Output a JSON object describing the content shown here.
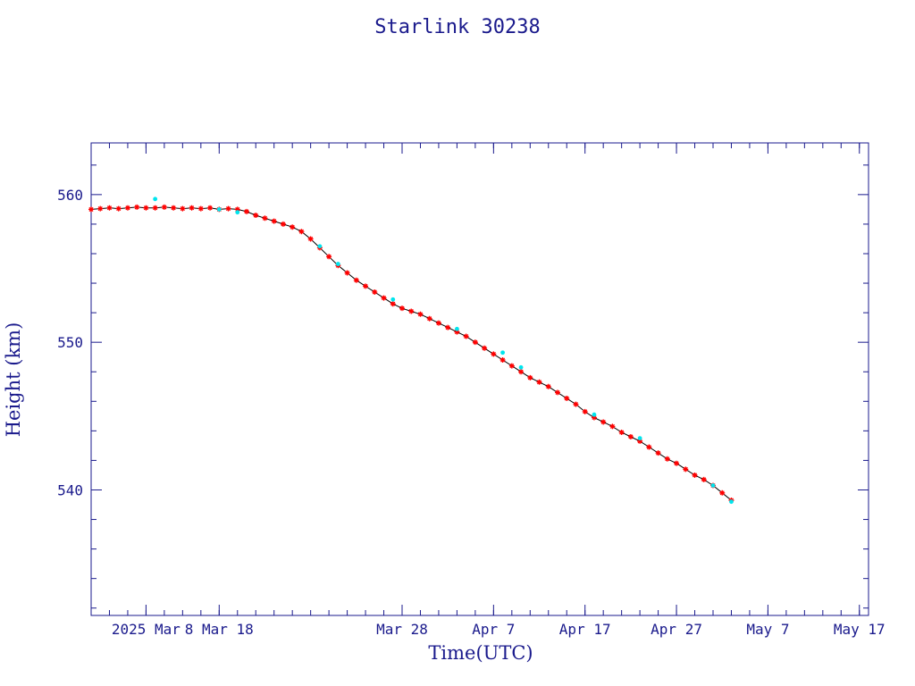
{
  "chart_data": {
    "type": "scatter",
    "title": "Starlink 30238",
    "xlabel": "Time(UTC)",
    "ylabel": "Height (km)",
    "x_range": [
      "2025-02-22",
      "2025-05-18"
    ],
    "ylim": [
      531.5,
      563.5
    ],
    "x_ticks": [
      {
        "date": "2025-02-28",
        "label": "2025 Mar"
      },
      {
        "date": "2025-03-08",
        "label": "8 Mar 18"
      },
      {
        "date": "2025-03-28",
        "label": "Mar 28"
      },
      {
        "date": "2025-04-07",
        "label": "Apr  7"
      },
      {
        "date": "2025-04-17",
        "label": "Apr 17"
      },
      {
        "date": "2025-04-27",
        "label": "Apr 27"
      },
      {
        "date": "2025-05-07",
        "label": "May  7"
      },
      {
        "date": "2025-05-17",
        "label": "May 17"
      }
    ],
    "y_ticks": [
      540,
      550,
      560
    ],
    "grid": false,
    "series": [
      {
        "color": "#ff0000",
        "marker": "asterisk",
        "points": [
          [
            "2025-02-22",
            559.0
          ],
          [
            "2025-02-23",
            559.05
          ],
          [
            "2025-02-24",
            559.1
          ],
          [
            "2025-02-25",
            559.05
          ],
          [
            "2025-02-26",
            559.1
          ],
          [
            "2025-02-27",
            559.15
          ],
          [
            "2025-02-28",
            559.1
          ],
          [
            "2025-03-01",
            559.1
          ],
          [
            "2025-03-02",
            559.15
          ],
          [
            "2025-03-03",
            559.1
          ],
          [
            "2025-03-04",
            559.05
          ],
          [
            "2025-03-05",
            559.1
          ],
          [
            "2025-03-06",
            559.05
          ],
          [
            "2025-03-07",
            559.1
          ],
          [
            "2025-03-08",
            559.0
          ],
          [
            "2025-03-09",
            559.05
          ],
          [
            "2025-03-10",
            559.0
          ],
          [
            "2025-03-11",
            558.85
          ],
          [
            "2025-03-12",
            558.6
          ],
          [
            "2025-03-13",
            558.4
          ],
          [
            "2025-03-14",
            558.2
          ],
          [
            "2025-03-15",
            558.0
          ],
          [
            "2025-03-16",
            557.8
          ],
          [
            "2025-03-17",
            557.5
          ],
          [
            "2025-03-18",
            557.0
          ],
          [
            "2025-03-19",
            556.4
          ],
          [
            "2025-03-20",
            555.8
          ],
          [
            "2025-03-21",
            555.2
          ],
          [
            "2025-03-22",
            554.7
          ],
          [
            "2025-03-23",
            554.2
          ],
          [
            "2025-03-24",
            553.8
          ],
          [
            "2025-03-25",
            553.4
          ],
          [
            "2025-03-26",
            553.0
          ],
          [
            "2025-03-27",
            552.6
          ],
          [
            "2025-03-28",
            552.3
          ],
          [
            "2025-03-29",
            552.1
          ],
          [
            "2025-03-30",
            551.9
          ],
          [
            "2025-03-31",
            551.6
          ],
          [
            "2025-04-01",
            551.3
          ],
          [
            "2025-04-02",
            551.0
          ],
          [
            "2025-04-03",
            550.7
          ],
          [
            "2025-04-04",
            550.4
          ],
          [
            "2025-04-05",
            550.0
          ],
          [
            "2025-04-06",
            549.6
          ],
          [
            "2025-04-07",
            549.2
          ],
          [
            "2025-04-08",
            548.8
          ],
          [
            "2025-04-09",
            548.4
          ],
          [
            "2025-04-10",
            548.0
          ],
          [
            "2025-04-11",
            547.6
          ],
          [
            "2025-04-12",
            547.3
          ],
          [
            "2025-04-13",
            547.0
          ],
          [
            "2025-04-14",
            546.6
          ],
          [
            "2025-04-15",
            546.2
          ],
          [
            "2025-04-16",
            545.8
          ],
          [
            "2025-04-17",
            545.3
          ],
          [
            "2025-04-18",
            544.9
          ],
          [
            "2025-04-19",
            544.6
          ],
          [
            "2025-04-20",
            544.3
          ],
          [
            "2025-04-21",
            543.9
          ],
          [
            "2025-04-22",
            543.6
          ],
          [
            "2025-04-23",
            543.3
          ],
          [
            "2025-04-24",
            542.9
          ],
          [
            "2025-04-25",
            542.5
          ],
          [
            "2025-04-26",
            542.1
          ],
          [
            "2025-04-27",
            541.8
          ],
          [
            "2025-04-28",
            541.4
          ],
          [
            "2025-04-29",
            541.0
          ],
          [
            "2025-04-30",
            540.7
          ],
          [
            "2025-05-01",
            540.3
          ],
          [
            "2025-05-02",
            539.8
          ],
          [
            "2025-05-03",
            539.3
          ]
        ]
      },
      {
        "color": "#00e5ee",
        "marker": "point",
        "points": [
          [
            "2025-03-01",
            559.7
          ],
          [
            "2025-03-08",
            559.0
          ],
          [
            "2025-03-10",
            558.8
          ],
          [
            "2025-03-19",
            556.5
          ],
          [
            "2025-03-21",
            555.3
          ],
          [
            "2025-03-27",
            552.9
          ],
          [
            "2025-04-03",
            550.9
          ],
          [
            "2025-04-08",
            549.3
          ],
          [
            "2025-04-10",
            548.3
          ],
          [
            "2025-04-18",
            545.1
          ],
          [
            "2025-04-23",
            543.5
          ],
          [
            "2025-05-01",
            540.3
          ],
          [
            "2025-05-03",
            539.2
          ]
        ]
      }
    ]
  }
}
